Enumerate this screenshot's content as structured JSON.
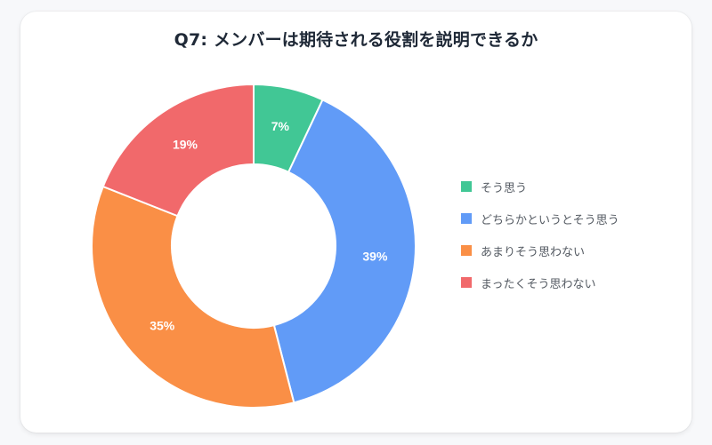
{
  "chart_data": {
    "type": "pie",
    "subtype": "donut",
    "title": "Q7: メンバーは期待される役割を説明できるか",
    "categories": [
      "そう思う",
      "どちらかというとそう思う",
      "あまりそう思わない",
      "まったくそう思わない"
    ],
    "values": [
      7,
      39,
      35,
      19
    ],
    "value_labels": [
      "7%",
      "39%",
      "35%",
      "19%"
    ],
    "colors": [
      "#41c795",
      "#619bf7",
      "#fa8f46",
      "#f1696b"
    ],
    "legend_position": "right",
    "unit": "%"
  },
  "title": "Q7: メンバーは期待される役割を説明できるか",
  "legend": [
    {
      "label": "そう思う",
      "color": "#41c795"
    },
    {
      "label": "どちらかというとそう思う",
      "color": "#619bf7"
    },
    {
      "label": "あまりそう思わない",
      "color": "#fa8f46"
    },
    {
      "label": "まったくそう思わない",
      "color": "#f1696b"
    }
  ]
}
